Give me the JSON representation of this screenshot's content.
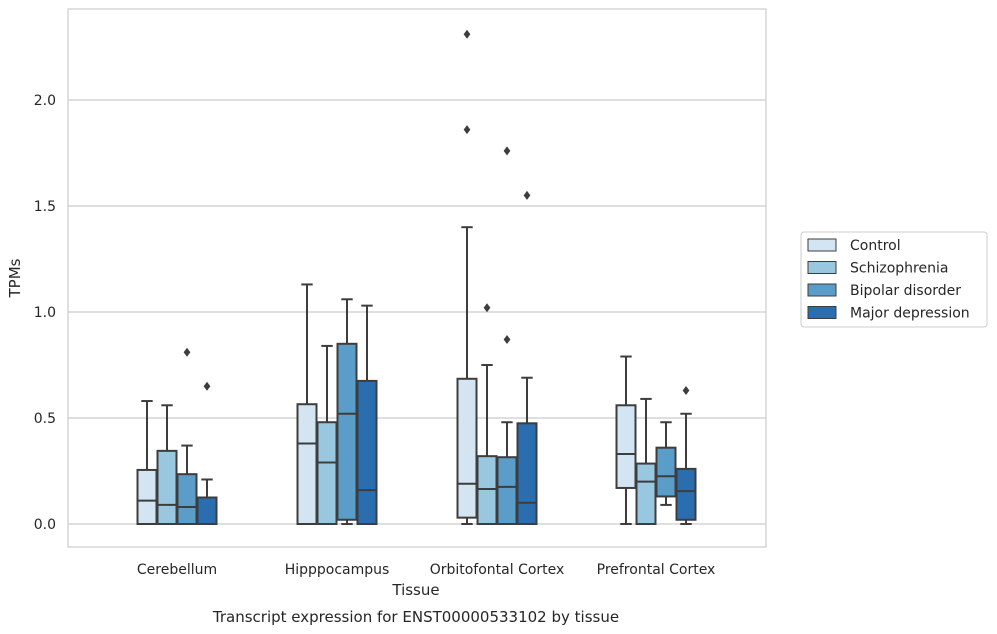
{
  "chart_data": {
    "type": "box",
    "xlabel": "Tissue",
    "ylabel": "TPMs",
    "caption": "Transcript expression for ENST00000533102 by tissue",
    "ylim": [
      -0.11,
      2.44
    ],
    "yticks": [
      0.0,
      0.5,
      1.0,
      1.5,
      2.0
    ],
    "ytick_labels": [
      "0.0",
      "0.5",
      "1.0",
      "1.5",
      "2.0"
    ],
    "grid": "horizontal",
    "legend_position": "right",
    "categories": [
      "Cerebellum",
      "Hipppocampus",
      "Orbitofontal Cortex",
      "Prefrontal Cortex"
    ],
    "series": [
      {
        "name": "Control",
        "color": "#d3e4f3",
        "boxes": [
          {
            "whisker_low": 0.0,
            "q1": 0.0,
            "median": 0.11,
            "q3": 0.255,
            "whisker_high": 0.58,
            "outliers": []
          },
          {
            "whisker_low": 0.0,
            "q1": 0.0,
            "median": 0.38,
            "q3": 0.565,
            "whisker_high": 1.13,
            "outliers": []
          },
          {
            "whisker_low": 0.0,
            "q1": 0.03,
            "median": 0.19,
            "q3": 0.685,
            "whisker_high": 1.4,
            "outliers": [
              1.86,
              2.31
            ]
          },
          {
            "whisker_low": 0.0,
            "q1": 0.17,
            "median": 0.33,
            "q3": 0.56,
            "whisker_high": 0.79,
            "outliers": []
          }
        ]
      },
      {
        "name": "Schizophrenia",
        "color": "#9ac7e0",
        "boxes": [
          {
            "whisker_low": 0.0,
            "q1": 0.0,
            "median": 0.09,
            "q3": 0.345,
            "whisker_high": 0.56,
            "outliers": []
          },
          {
            "whisker_low": 0.0,
            "q1": 0.0,
            "median": 0.29,
            "q3": 0.48,
            "whisker_high": 0.84,
            "outliers": []
          },
          {
            "whisker_low": 0.0,
            "q1": 0.0,
            "median": 0.165,
            "q3": 0.32,
            "whisker_high": 0.75,
            "outliers": [
              1.02
            ]
          },
          {
            "whisker_low": 0.0,
            "q1": 0.0,
            "median": 0.2,
            "q3": 0.285,
            "whisker_high": 0.59,
            "outliers": []
          }
        ]
      },
      {
        "name": "Bipolar disorder",
        "color": "#5a9dc8",
        "boxes": [
          {
            "whisker_low": 0.0,
            "q1": 0.0,
            "median": 0.08,
            "q3": 0.235,
            "whisker_high": 0.37,
            "outliers": [
              0.81
            ]
          },
          {
            "whisker_low": 0.0,
            "q1": 0.02,
            "median": 0.52,
            "q3": 0.85,
            "whisker_high": 1.06,
            "outliers": []
          },
          {
            "whisker_low": 0.0,
            "q1": 0.0,
            "median": 0.175,
            "q3": 0.315,
            "whisker_high": 0.48,
            "outliers": [
              0.87,
              1.76
            ]
          },
          {
            "whisker_low": 0.09,
            "q1": 0.13,
            "median": 0.225,
            "q3": 0.36,
            "whisker_high": 0.48,
            "outliers": []
          }
        ]
      },
      {
        "name": "Major depression",
        "color": "#2a6eaf",
        "boxes": [
          {
            "whisker_low": 0.0,
            "q1": 0.0,
            "median": 0.0,
            "q3": 0.125,
            "whisker_high": 0.21,
            "outliers": [
              0.65
            ]
          },
          {
            "whisker_low": 0.0,
            "q1": 0.0,
            "median": 0.16,
            "q3": 0.675,
            "whisker_high": 1.03,
            "outliers": []
          },
          {
            "whisker_low": 0.0,
            "q1": 0.0,
            "median": 0.1,
            "q3": 0.475,
            "whisker_high": 0.69,
            "outliers": [
              1.55
            ]
          },
          {
            "whisker_low": 0.0,
            "q1": 0.02,
            "median": 0.155,
            "q3": 0.26,
            "whisker_high": 0.52,
            "outliers": [
              0.63
            ]
          }
        ]
      }
    ]
  }
}
